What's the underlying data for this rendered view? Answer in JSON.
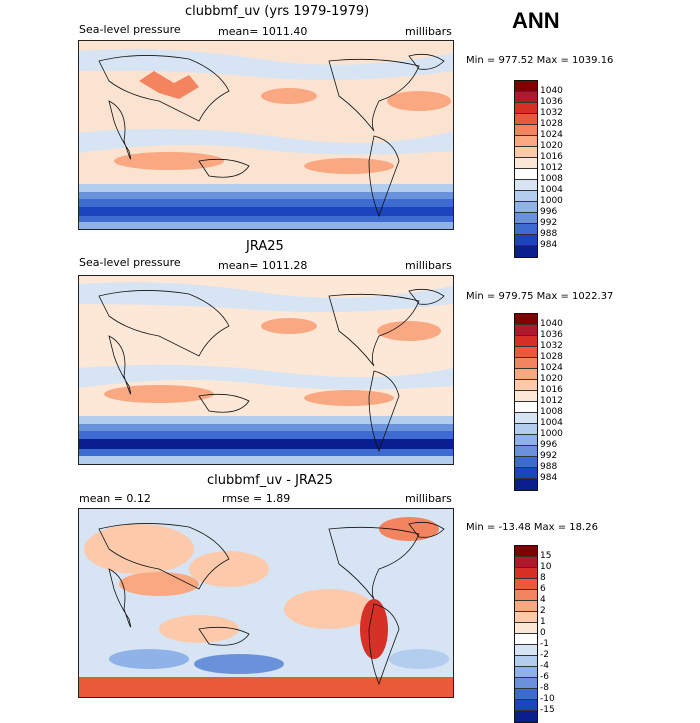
{
  "season": "ANN",
  "panels": [
    {
      "title": "clubbmf_uv (yrs 1979-1979)",
      "variable": "Sea-level pressure",
      "stat": "mean= 1011.40",
      "units": "millibars",
      "minmax": "Min = 977.52 Max = 1039.16",
      "colorbar": {
        "labels": [
          "1040",
          "1036",
          "1032",
          "1028",
          "1024",
          "1020",
          "1016",
          "1012",
          "1008",
          "1004",
          "1000",
          "996",
          "992",
          "988",
          "984"
        ],
        "colors": [
          "#7f0000",
          "#b2182b",
          "#d73027",
          "#ea5a3a",
          "#f4845f",
          "#f9a882",
          "#fcc9ab",
          "#fde7d6",
          "#ffffff",
          "#d6e4f4",
          "#b3cdef",
          "#8fb3e8",
          "#6a92db",
          "#3e6bd0",
          "#1c44bd",
          "#0a1f8f"
        ]
      }
    },
    {
      "title": "JRA25",
      "variable": "Sea-level pressure",
      "stat": "mean= 1011.28",
      "units": "millibars",
      "minmax": "Min = 979.75 Max = 1022.37",
      "colorbar": {
        "labels": [
          "1040",
          "1036",
          "1032",
          "1028",
          "1024",
          "1020",
          "1016",
          "1012",
          "1008",
          "1004",
          "1000",
          "996",
          "992",
          "988",
          "984"
        ],
        "colors": [
          "#7f0000",
          "#b2182b",
          "#d73027",
          "#ea5a3a",
          "#f4845f",
          "#f9a882",
          "#fcc9ab",
          "#fde7d6",
          "#ffffff",
          "#d6e4f4",
          "#b3cdef",
          "#8fb3e8",
          "#6a92db",
          "#3e6bd0",
          "#1c44bd",
          "#0a1f8f"
        ]
      }
    },
    {
      "title": "clubbmf_uv - JRA25",
      "stat_left": "mean =    0.12",
      "stat": "rmse =    1.89",
      "units": "millibars",
      "minmax": "Min = -13.48 Max =  18.26",
      "colorbar": {
        "labels": [
          "15",
          "10",
          "8",
          "6",
          "4",
          "2",
          "1",
          "0",
          "-1",
          "-2",
          "-4",
          "-6",
          "-8",
          "-10",
          "-15"
        ],
        "colors": [
          "#7f0000",
          "#b2182b",
          "#d73027",
          "#ea5a3a",
          "#f4845f",
          "#f9a882",
          "#fcc9ab",
          "#fde7d6",
          "#ffffff",
          "#d6e4f4",
          "#b3cdef",
          "#8fb3e8",
          "#6a92db",
          "#3e6bd0",
          "#1c44bd",
          "#0a1f8f"
        ]
      }
    }
  ],
  "fields": {
    "southern_band_colors": [
      "#0a1f8f",
      "#1c44bd",
      "#3e6bd0",
      "#6a92db",
      "#b3cdef"
    ],
    "subtropical_high_color": "#f9a882",
    "background_color": "#fbe3d2",
    "low_color": "#d6e4f4",
    "diff_bottom_color": "#ea5a3a"
  }
}
